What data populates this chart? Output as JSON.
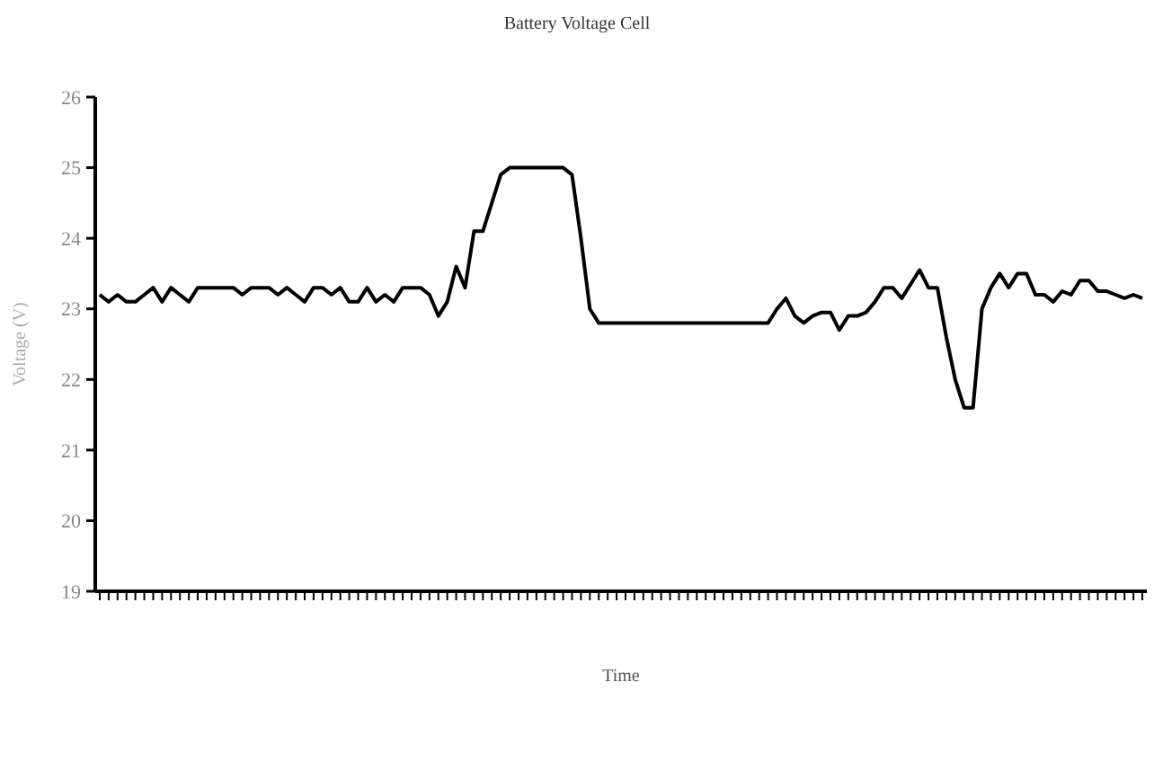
{
  "chart_data": {
    "type": "line",
    "title": "Battery Voltage Cell",
    "xlabel": "Time",
    "ylabel": "Voltage (V)",
    "categories": [
      null,
      null,
      null,
      null,
      null,
      null,
      null,
      null,
      null,
      null,
      null,
      null,
      null,
      null,
      null,
      null,
      null,
      null,
      null,
      null,
      null,
      null,
      null,
      null,
      null,
      null,
      null,
      null,
      null,
      null,
      null,
      null,
      null,
      null,
      null,
      null,
      null,
      null,
      null,
      null,
      null,
      null,
      null,
      null,
      null,
      null,
      null,
      null,
      null,
      null,
      null,
      null,
      null,
      null,
      null,
      null,
      null,
      null,
      null,
      null,
      null,
      null,
      null,
      null,
      null,
      null,
      null,
      null,
      null,
      null,
      null,
      null,
      null,
      null,
      null,
      null,
      null,
      null,
      null,
      null,
      null,
      null,
      null,
      null,
      null,
      null,
      null,
      null,
      null,
      null,
      null,
      null,
      null,
      null,
      null,
      null,
      null,
      null,
      null,
      null,
      null,
      null,
      null,
      null,
      null,
      null,
      null,
      null,
      null,
      null,
      null,
      null,
      null,
      null,
      null,
      null,
      null,
      null
    ],
    "series": [
      {
        "color": "#000000",
        "values": [
          23.2,
          23.1,
          23.2,
          23.1,
          23.1,
          23.2,
          23.3,
          23.1,
          23.3,
          23.2,
          23.1,
          23.3,
          23.3,
          23.3,
          23.3,
          23.3,
          23.2,
          23.3,
          23.3,
          23.3,
          23.2,
          23.3,
          23.2,
          23.1,
          23.3,
          23.3,
          23.2,
          23.3,
          23.1,
          23.1,
          23.3,
          23.1,
          23.2,
          23.1,
          23.3,
          23.3,
          23.3,
          23.2,
          22.9,
          23.1,
          23.6,
          23.3,
          24.1,
          24.1,
          24.5,
          24.9,
          25,
          25,
          25,
          25,
          25,
          25,
          25,
          24.9,
          24.0,
          23.0,
          22.8,
          22.8,
          22.8,
          22.8,
          22.8,
          22.8,
          22.8,
          22.8,
          22.8,
          22.8,
          22.8,
          22.8,
          22.8,
          22.8,
          22.8,
          22.8,
          22.8,
          22.8,
          22.8,
          22.8,
          23.0,
          23.15,
          22.9,
          22.8,
          22.9,
          22.95,
          22.95,
          22.7,
          22.9,
          22.9,
          22.95,
          23.1,
          23.3,
          23.3,
          23.15,
          23.35,
          23.55,
          23.3,
          23.3,
          22.6,
          22.0,
          21.6,
          21.6,
          23.0,
          23.3,
          23.5,
          23.3,
          23.5,
          23.5,
          23.2,
          23.2,
          23.1,
          23.25,
          23.2,
          23.4,
          23.4,
          23.25,
          23.25,
          23.2,
          23.15,
          23.2,
          23.15
        ]
      }
    ],
    "ylim": [
      19,
      26
    ],
    "yticks": [
      19,
      20,
      21,
      22,
      23,
      24,
      25,
      26
    ],
    "grid": false,
    "line_style": "solid"
  }
}
